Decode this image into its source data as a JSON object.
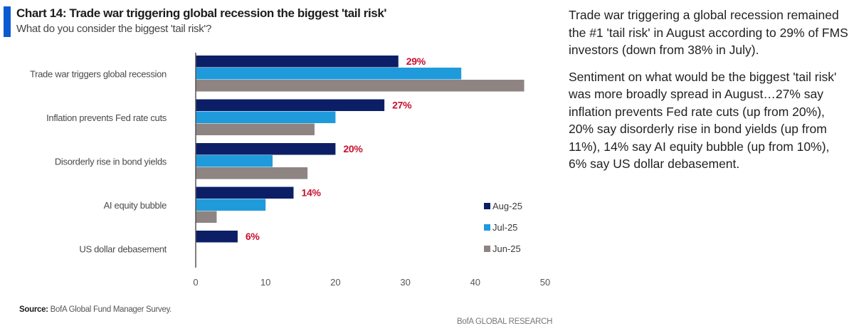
{
  "header": {
    "title": "Chart 14: Trade war triggering global recession the biggest 'tail risk'",
    "subtitle": "What do you consider the biggest 'tail risk'?",
    "accent_color": "#0a5bd1"
  },
  "chart_data": {
    "type": "bar",
    "orientation": "horizontal",
    "title": "Chart 14: Trade war triggering global recession the biggest 'tail risk'",
    "subtitle": "What do you consider the biggest 'tail risk'?",
    "xlabel": "",
    "ylabel": "",
    "xlim": [
      0,
      50
    ],
    "xticks": [
      0,
      10,
      20,
      30,
      40,
      50
    ],
    "grid": false,
    "legend_position": "bottom-right",
    "categories": [
      "Trade war triggers global recession",
      "Inflation prevents Fed rate cuts",
      "Disorderly rise in bond yields",
      "AI equity bubble",
      "US dollar debasement"
    ],
    "series": [
      {
        "name": "Aug-25",
        "color": "#0c1f66",
        "values": [
          29,
          27,
          20,
          14,
          6
        ]
      },
      {
        "name": "Jul-25",
        "color": "#1f9bdc",
        "values": [
          38,
          20,
          11,
          10,
          0
        ]
      },
      {
        "name": "Jun-25",
        "color": "#8e8482",
        "values": [
          47,
          17,
          16,
          3,
          0
        ]
      }
    ],
    "data_labels": [
      "29%",
      "27%",
      "20%",
      "14%",
      "6%"
    ],
    "data_label_color": "#c8102e"
  },
  "footer": {
    "source_label": "Source:",
    "source_text": " BofA Global Fund Manager Survey.",
    "brand": "BofA GLOBAL RESEARCH"
  },
  "commentary": {
    "paragraphs": [
      "Trade war triggering a global recession remained the #1 'tail risk' in August according to 29% of FMS investors (down from 38% in July).",
      "Sentiment on what would be the biggest 'tail risk' was more broadly spread in August…27% say inflation prevents Fed rate cuts (up from 20%), 20% say disorderly rise in bond yields (up from 11%), 14% say AI equity bubble (up from 10%), 6% say US dollar debasement."
    ]
  }
}
